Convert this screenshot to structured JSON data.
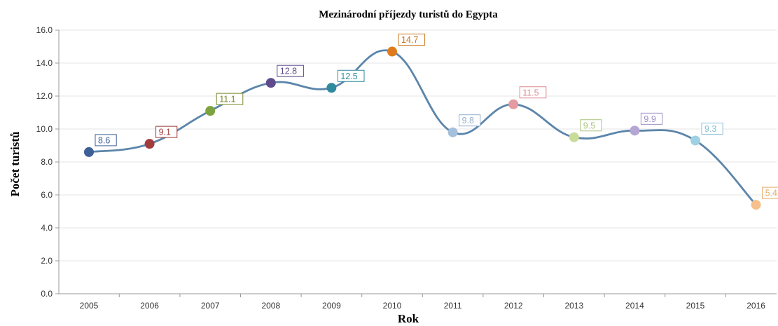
{
  "chart_data": {
    "type": "line",
    "title": "Mezinárodní příjezdy turistů do Egypta",
    "xlabel": "Rok",
    "ylabel": "Počet turistů",
    "ylim": [
      0,
      16
    ],
    "yticks": [
      "0.0",
      "2.0",
      "4.0",
      "6.0",
      "8.0",
      "10.0",
      "12.0",
      "14.0",
      "16.0"
    ],
    "grid": true,
    "legend": "none",
    "categories": [
      "2005",
      "2006",
      "2007",
      "2008",
      "2009",
      "2010",
      "2011",
      "2012",
      "2013",
      "2014",
      "2015",
      "2016"
    ],
    "series": [
      {
        "values": [
          8.6,
          9.1,
          11.1,
          12.8,
          12.5,
          14.7,
          9.8,
          11.5,
          9.5,
          9.9,
          9.3,
          5.4
        ],
        "data_labels": [
          "8.6",
          "9.1",
          "11.1",
          "12.8",
          "12.5",
          "14.7",
          "9.8",
          "11.5",
          "9.5",
          "9.9",
          "9.3",
          "5.4"
        ],
        "line_color": "#5b85aa",
        "point_colors": [
          "#3e5f97",
          "#a23b3b",
          "#7ca33d",
          "#5e4a8c",
          "#2f8a9e",
          "#e07b1b",
          "#a6bfdc",
          "#e39aa1",
          "#c9dc9a",
          "#b5a6d3",
          "#9fd0e3",
          "#f5c08b"
        ],
        "label_colors": [
          "#3e5f97",
          "#a23b3b",
          "#7c8a2e",
          "#5e4a8c",
          "#2f8a9e",
          "#c7761a",
          "#93aed0",
          "#d98a92",
          "#a9c27a",
          "#9d8cc4",
          "#86bfd6",
          "#e8a964"
        ]
      }
    ]
  }
}
